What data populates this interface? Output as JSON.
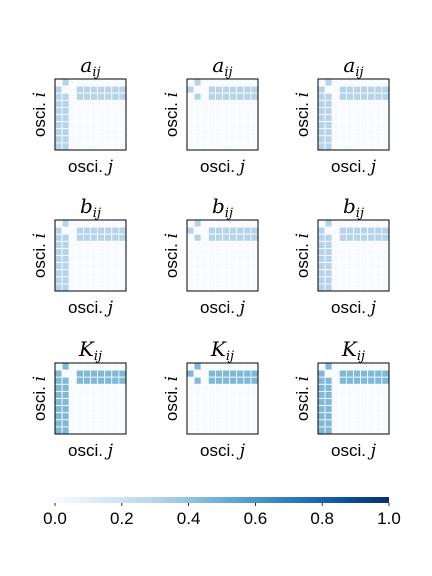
{
  "chart_data": {
    "type": "heatmap",
    "n": 10,
    "xlabel": "osci.",
    "xlabel_var": "j",
    "ylabel": "osci.",
    "ylabel_var": "i",
    "colormap": "Blues",
    "vmin": 0.0,
    "vmax": 1.0,
    "colorbar_ticks": [
      "0.0",
      "0.2",
      "0.4",
      "0.6",
      "0.8",
      "1.0"
    ],
    "panels": [
      {
        "title_base": "a",
        "title_sub": "ij",
        "value": 0.3,
        "pattern": "full"
      },
      {
        "title_base": "a",
        "title_sub": "ij",
        "value": 0.3,
        "pattern": "rows"
      },
      {
        "title_base": "a",
        "title_sub": "ij",
        "value": 0.3,
        "pattern": "full"
      },
      {
        "title_base": "b",
        "title_sub": "ij",
        "value": 0.3,
        "pattern": "full"
      },
      {
        "title_base": "b",
        "title_sub": "ij",
        "value": 0.3,
        "pattern": "rows"
      },
      {
        "title_base": "b",
        "title_sub": "ij",
        "value": 0.3,
        "pattern": "full"
      },
      {
        "title_base": "K",
        "title_sub": "ij",
        "value": 0.45,
        "pattern": "full"
      },
      {
        "title_base": "K",
        "title_sub": "ij",
        "value": 0.45,
        "pattern": "rows"
      },
      {
        "title_base": "K",
        "title_sub": "ij",
        "value": 0.45,
        "pattern": "full"
      }
    ]
  }
}
